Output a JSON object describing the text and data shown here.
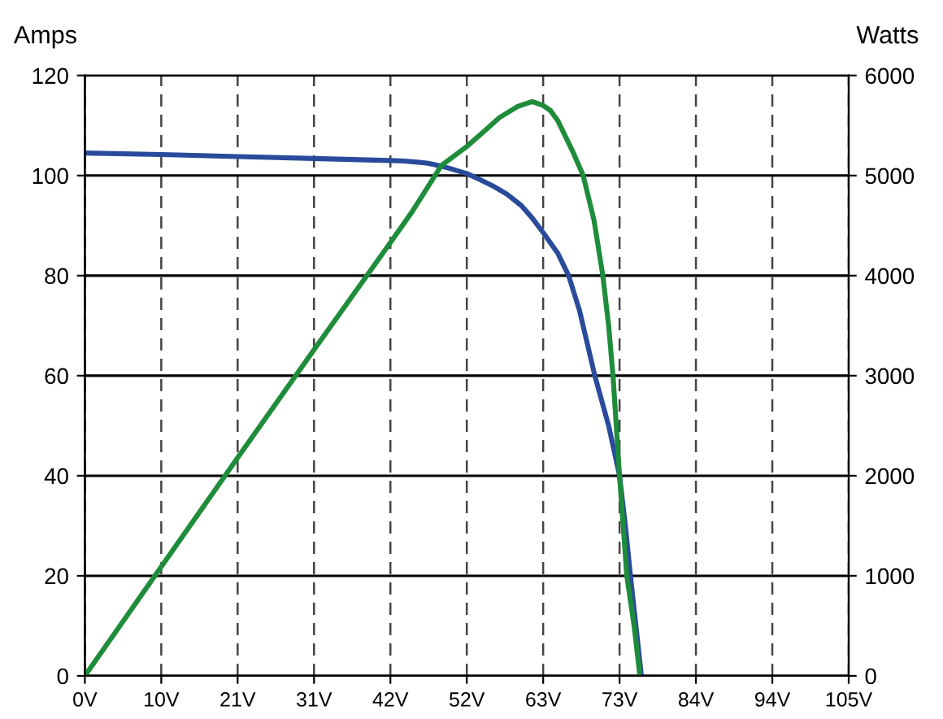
{
  "chart_data": {
    "type": "line",
    "ylabel": "Amps",
    "y2label": "Watts",
    "xlim": [
      0,
      105
    ],
    "xticks": [
      {
        "value": 0,
        "label": "0V"
      },
      {
        "value": 10.5,
        "label": "10V"
      },
      {
        "value": 21,
        "label": "21V"
      },
      {
        "value": 31.5,
        "label": "31V"
      },
      {
        "value": 42,
        "label": "42V"
      },
      {
        "value": 52.5,
        "label": "52V"
      },
      {
        "value": 63,
        "label": "63V"
      },
      {
        "value": 73.5,
        "label": "73V"
      },
      {
        "value": 84,
        "label": "84V"
      },
      {
        "value": 94.5,
        "label": "94V"
      },
      {
        "value": 105,
        "label": "105V"
      }
    ],
    "ylim": [
      0,
      120
    ],
    "yticks": [
      0,
      20,
      40,
      60,
      80,
      100,
      120
    ],
    "y2lim": [
      0,
      6000
    ],
    "y2ticks": [
      0,
      1000,
      2000,
      3000,
      4000,
      5000,
      6000
    ],
    "grid": true,
    "series": [
      {
        "color": "#2a4b9b",
        "axis": "y",
        "x": [
          0,
          10.5,
          21,
          31.5,
          42,
          44,
          47,
          48,
          50,
          52.5,
          54,
          56,
          58,
          60,
          61.5,
          63,
          65,
          66.5,
          68,
          70.1,
          72,
          73.5,
          74.3,
          75,
          76.5
        ],
        "values": [
          104.5,
          104.2,
          103.8,
          103.4,
          103,
          102.9,
          102.5,
          102.2,
          101.5,
          100.4,
          99.4,
          98,
          96.3,
          94,
          91.5,
          88.6,
          84.5,
          80,
          73,
          60,
          50,
          40,
          30,
          20,
          0
        ]
      },
      {
        "color": "#1e8c3a",
        "axis": "y2",
        "x": [
          0,
          10.5,
          21,
          31.5,
          42,
          45,
          49,
          52.5,
          55,
          57,
          59.5,
          61.5,
          63,
          64,
          65,
          66,
          67,
          68.5,
          70,
          71.2,
          72,
          72.6,
          73.5,
          74.5,
          75.5,
          76.3
        ],
        "values": [
          0,
          1090,
          2180,
          3260,
          4330,
          4640,
          5100,
          5290,
          5450,
          5580,
          5690,
          5740,
          5700,
          5650,
          5550,
          5400,
          5250,
          5000,
          4550,
          4000,
          3500,
          3000,
          2000,
          1000,
          500,
          0
        ]
      }
    ]
  }
}
